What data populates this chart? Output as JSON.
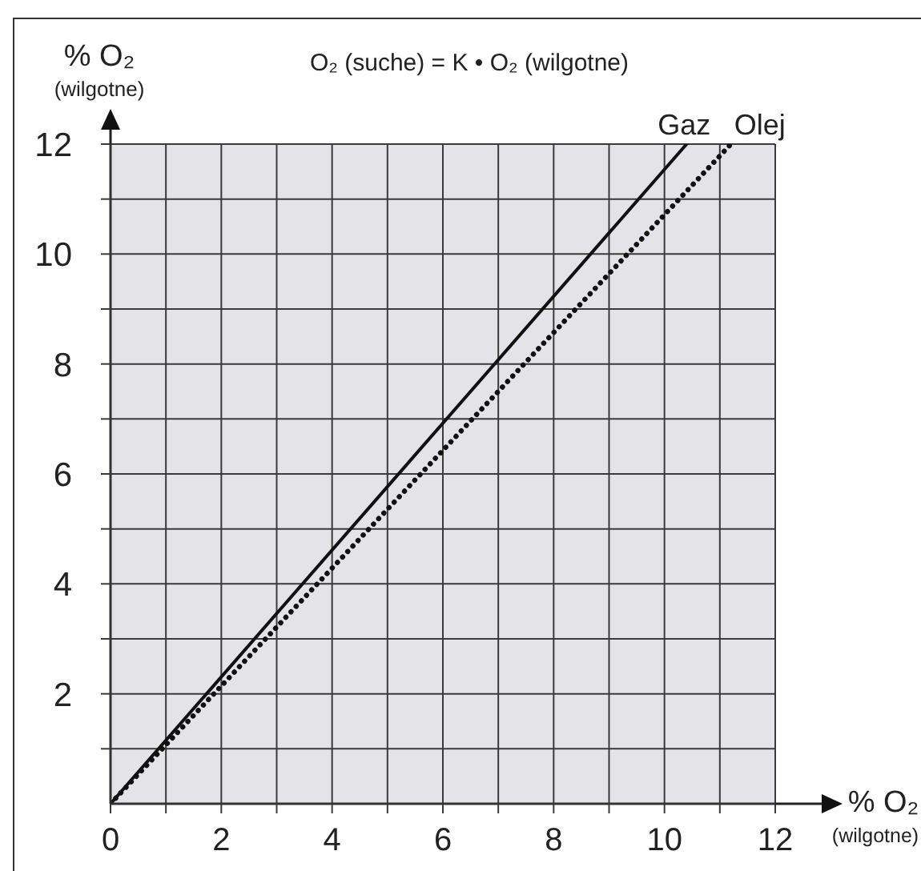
{
  "chart_data": {
    "type": "line",
    "title": "O₂ (suche) = K • O₂ (wilgotne)",
    "xlabel": "% O₂ (wilgotne)",
    "ylabel": "% O₂ (wilgotne)",
    "series": [
      {
        "name": "Gaz",
        "color": "#111111",
        "x": [
          0,
          10.4
        ],
        "values": [
          0,
          12
        ],
        "line_style": "solid"
      },
      {
        "name": "Olej",
        "color": "#111111",
        "x": [
          0,
          11.2
        ],
        "values": [
          0,
          12
        ],
        "line_style": "dotted"
      }
    ],
    "xlim": [
      0,
      12
    ],
    "ylim": [
      0,
      12
    ],
    "xticks": [
      0,
      {
        "value": 1,
        "label": null
      },
      2,
      {
        "value": 3,
        "label": null
      },
      4,
      {
        "value": 5,
        "label": null
      },
      6,
      {
        "value": 7,
        "label": null
      },
      8,
      {
        "value": 9,
        "label": null
      },
      10,
      {
        "value": 11,
        "label": null
      },
      12
    ],
    "yticks": [
      {
        "value": 1,
        "label": null
      },
      2,
      {
        "value": 3,
        "label": null
      },
      4,
      {
        "value": 5,
        "label": null
      },
      6,
      {
        "value": 7,
        "label": null
      },
      8,
      {
        "value": 9,
        "label": null
      },
      10,
      {
        "value": 11,
        "label": null
      },
      12
    ],
    "grid": true
  }
}
